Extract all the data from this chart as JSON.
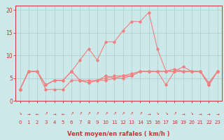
{
  "x": [
    0,
    1,
    2,
    3,
    4,
    5,
    6,
    7,
    8,
    9,
    10,
    11,
    12,
    13,
    14,
    15,
    16,
    17,
    18,
    19,
    20,
    21,
    22,
    23
  ],
  "wind_gust": [
    2.5,
    6.5,
    6.5,
    3.5,
    4.5,
    4.5,
    6.5,
    9.0,
    11.5,
    9.0,
    13.0,
    13.0,
    15.5,
    17.5,
    17.5,
    19.5,
    11.5,
    6.5,
    6.5,
    7.5,
    6.5,
    6.5,
    3.5,
    6.5
  ],
  "wind_avg": [
    2.5,
    6.5,
    6.5,
    3.5,
    4.5,
    4.5,
    6.5,
    4.5,
    4.0,
    4.5,
    5.5,
    5.0,
    5.5,
    5.5,
    6.5,
    6.5,
    6.5,
    6.5,
    7.0,
    6.5,
    6.5,
    6.5,
    3.5,
    6.5
  ],
  "wind_line3": [
    2.5,
    6.5,
    6.5,
    3.5,
    4.5,
    4.5,
    6.5,
    4.5,
    4.5,
    4.5,
    5.0,
    5.5,
    5.5,
    6.0,
    6.5,
    6.5,
    6.5,
    6.5,
    6.5,
    6.5,
    6.5,
    6.5,
    4.0,
    6.5
  ],
  "wind_min": [
    2.5,
    6.5,
    6.5,
    2.5,
    2.5,
    2.5,
    4.5,
    4.5,
    4.0,
    4.5,
    4.5,
    5.0,
    5.0,
    5.5,
    6.5,
    6.5,
    6.5,
    3.5,
    6.5,
    6.5,
    6.5,
    6.5,
    3.5,
    6.5
  ],
  "arrow_chars": [
    "↘",
    "→",
    "←",
    "↗",
    "→",
    "←",
    "↗",
    "↗",
    "↗",
    "↗",
    "↗",
    "↗",
    "↗",
    "↗",
    "↗",
    "→",
    "↘",
    "↘",
    "↗",
    "→",
    "↘",
    "→",
    "→",
    "→"
  ],
  "line_color": "#f08080",
  "bg_color": "#cce8e8",
  "grid_color": "#aacece",
  "axis_color": "#cc3333",
  "text_color": "#cc3333",
  "xlabel": "Vent moyen/en rafales ( km/h )",
  "xlim": [
    -0.5,
    23.5
  ],
  "ylim": [
    0,
    21
  ],
  "yticks": [
    0,
    5,
    10,
    15,
    20
  ],
  "xticks": [
    0,
    1,
    2,
    3,
    4,
    5,
    6,
    7,
    8,
    9,
    10,
    11,
    12,
    13,
    14,
    15,
    16,
    17,
    18,
    19,
    20,
    21,
    22,
    23
  ]
}
